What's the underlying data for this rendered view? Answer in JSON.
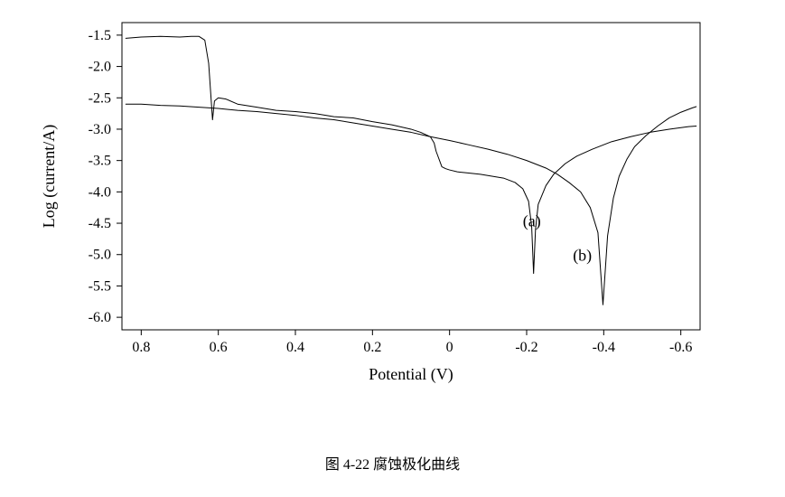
{
  "chart": {
    "type": "line",
    "background_color": "#ffffff",
    "plot_border_color": "#000000",
    "plot_border_width": 1,
    "line_color": "#000000",
    "line_width": 1,
    "axis_tick_length": 6,
    "x_axis": {
      "label": "Potential (V)",
      "label_fontsize": 18,
      "ticks": [
        0.8,
        0.6,
        0.4,
        0.2,
        0,
        -0.2,
        -0.4,
        -0.6
      ],
      "tick_labels": [
        "0.8",
        "0.6",
        "0.4",
        "0.2",
        "0",
        "-0.2",
        "-0.4",
        "-0.6"
      ],
      "min": 0.85,
      "max": -0.65,
      "tick_fontsize": 16
    },
    "y_axis": {
      "label": "Log (current/A)",
      "label_fontsize": 18,
      "ticks": [
        -1.5,
        -2.0,
        -2.5,
        -3.0,
        -3.5,
        -4.0,
        -4.5,
        -5.0,
        -5.5,
        -6.0
      ],
      "tick_labels": [
        "-1.5",
        "-2.0",
        "-2.5",
        "-3.0",
        "-3.5",
        "-4.0",
        "-4.5",
        "-5.0",
        "-5.5",
        "-6.0"
      ],
      "min": -6.2,
      "max": -1.3,
      "tick_fontsize": 16
    },
    "series": [
      {
        "name": "a",
        "label": "(a)",
        "label_pos_x": -0.19,
        "label_pos_y": -4.55,
        "color": "#000000",
        "points": [
          [
            0.84,
            -1.55
          ],
          [
            0.8,
            -1.53
          ],
          [
            0.75,
            -1.52
          ],
          [
            0.7,
            -1.53
          ],
          [
            0.67,
            -1.52
          ],
          [
            0.65,
            -1.52
          ],
          [
            0.635,
            -1.58
          ],
          [
            0.625,
            -1.95
          ],
          [
            0.62,
            -2.4
          ],
          [
            0.615,
            -2.85
          ],
          [
            0.61,
            -2.55
          ],
          [
            0.6,
            -2.5
          ],
          [
            0.58,
            -2.52
          ],
          [
            0.55,
            -2.6
          ],
          [
            0.5,
            -2.65
          ],
          [
            0.45,
            -2.7
          ],
          [
            0.4,
            -2.72
          ],
          [
            0.35,
            -2.75
          ],
          [
            0.3,
            -2.8
          ],
          [
            0.25,
            -2.82
          ],
          [
            0.2,
            -2.88
          ],
          [
            0.15,
            -2.93
          ],
          [
            0.1,
            -3.0
          ],
          [
            0.075,
            -3.05
          ],
          [
            0.05,
            -3.12
          ],
          [
            0.04,
            -3.22
          ],
          [
            0.035,
            -3.35
          ],
          [
            0.02,
            -3.6
          ],
          [
            0.01,
            -3.63
          ],
          [
            0.0,
            -3.65
          ],
          [
            -0.02,
            -3.68
          ],
          [
            -0.05,
            -3.7
          ],
          [
            -0.08,
            -3.72
          ],
          [
            -0.11,
            -3.75
          ],
          [
            -0.14,
            -3.78
          ],
          [
            -0.17,
            -3.85
          ],
          [
            -0.19,
            -3.95
          ],
          [
            -0.205,
            -4.15
          ],
          [
            -0.213,
            -4.55
          ],
          [
            -0.218,
            -5.3
          ],
          [
            -0.223,
            -4.6
          ],
          [
            -0.23,
            -4.2
          ],
          [
            -0.25,
            -3.9
          ],
          [
            -0.27,
            -3.72
          ],
          [
            -0.3,
            -3.55
          ],
          [
            -0.33,
            -3.43
          ],
          [
            -0.37,
            -3.32
          ],
          [
            -0.42,
            -3.2
          ],
          [
            -0.47,
            -3.12
          ],
          [
            -0.52,
            -3.05
          ],
          [
            -0.57,
            -3.0
          ],
          [
            -0.62,
            -2.96
          ],
          [
            -0.64,
            -2.95
          ]
        ]
      },
      {
        "name": "b",
        "label": "(b)",
        "label_pos_x": -0.32,
        "label_pos_y": -5.1,
        "color": "#000000",
        "points": [
          [
            0.84,
            -2.6
          ],
          [
            0.8,
            -2.6
          ],
          [
            0.75,
            -2.62
          ],
          [
            0.7,
            -2.63
          ],
          [
            0.65,
            -2.65
          ],
          [
            0.6,
            -2.67
          ],
          [
            0.55,
            -2.7
          ],
          [
            0.5,
            -2.72
          ],
          [
            0.45,
            -2.75
          ],
          [
            0.4,
            -2.78
          ],
          [
            0.35,
            -2.82
          ],
          [
            0.3,
            -2.85
          ],
          [
            0.25,
            -2.9
          ],
          [
            0.2,
            -2.95
          ],
          [
            0.15,
            -3.0
          ],
          [
            0.1,
            -3.05
          ],
          [
            0.05,
            -3.12
          ],
          [
            0.0,
            -3.18
          ],
          [
            -0.05,
            -3.25
          ],
          [
            -0.1,
            -3.32
          ],
          [
            -0.15,
            -3.4
          ],
          [
            -0.2,
            -3.5
          ],
          [
            -0.25,
            -3.62
          ],
          [
            -0.28,
            -3.72
          ],
          [
            -0.31,
            -3.85
          ],
          [
            -0.34,
            -4.0
          ],
          [
            -0.365,
            -4.25
          ],
          [
            -0.385,
            -4.65
          ],
          [
            -0.398,
            -5.8
          ],
          [
            -0.41,
            -4.7
          ],
          [
            -0.425,
            -4.1
          ],
          [
            -0.44,
            -3.75
          ],
          [
            -0.46,
            -3.48
          ],
          [
            -0.48,
            -3.28
          ],
          [
            -0.51,
            -3.1
          ],
          [
            -0.54,
            -2.95
          ],
          [
            -0.57,
            -2.82
          ],
          [
            -0.6,
            -2.73
          ],
          [
            -0.63,
            -2.66
          ],
          [
            -0.64,
            -2.64
          ]
        ]
      }
    ]
  },
  "caption": {
    "cn": "图 4-22  腐蚀极化曲线",
    "en": ""
  }
}
